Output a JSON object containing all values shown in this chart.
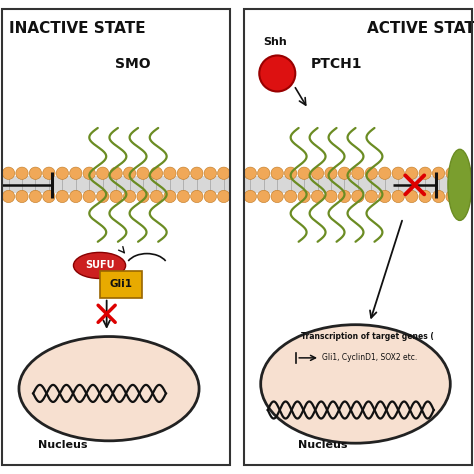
{
  "bg_color": "#ffffff",
  "membrane_orange": "#f0a858",
  "membrane_gray": "#d0d0d0",
  "protein_green": "#6b8c23",
  "nucleus_fill": "#f7e0d0",
  "nucleus_edge": "#222222",
  "sufu_color": "#cc2020",
  "gli1_color": "#e8aa00",
  "shh_color": "#dd1111",
  "red_x_color": "#dd0000",
  "black": "#111111",
  "panel_border": "#333333",
  "title_left": "INACTIVE STATE",
  "title_right": "ACTIVE STATE",
  "label_smo": "SMO",
  "label_ptch1": "PTCH1",
  "label_shh": "Shh",
  "label_sufu": "SUFU",
  "label_gli1": "Gli1",
  "label_nucleus": "Nucleus",
  "label_transcription1": "Transcription of target genes (",
  "label_transcription2": "Gli1, CyclinD1, SOX2 etc."
}
